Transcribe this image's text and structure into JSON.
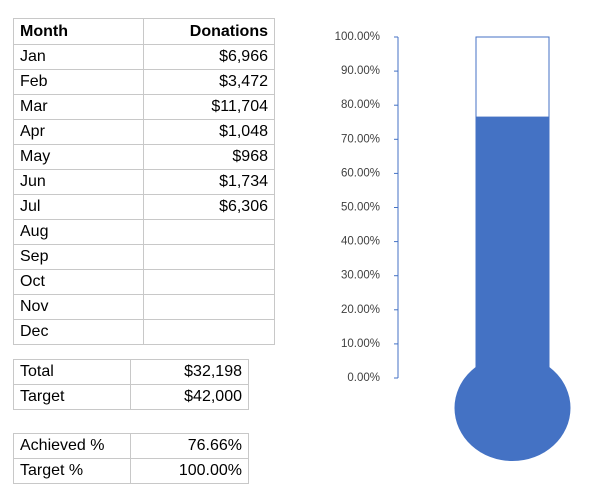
{
  "table": {
    "header": [
      "Month",
      "Donations"
    ],
    "rows": [
      [
        "Jan",
        "$6,966"
      ],
      [
        "Feb",
        "$3,472"
      ],
      [
        "Mar",
        "$11,704"
      ],
      [
        "Apr",
        "$1,048"
      ],
      [
        "May",
        "$968"
      ],
      [
        "Jun",
        "$1,734"
      ],
      [
        "Jul",
        "$6,306"
      ],
      [
        "Aug",
        null
      ],
      [
        "Sep",
        null
      ],
      [
        "Oct",
        null
      ],
      [
        "Nov",
        null
      ],
      [
        "Dec",
        null
      ]
    ],
    "totals": [
      [
        "Total",
        "$32,198"
      ],
      [
        "Target",
        "$42,000"
      ]
    ],
    "summary": [
      [
        "Achieved %",
        "76.66%"
      ],
      [
        "Target %",
        "100.00%"
      ]
    ]
  },
  "chart_data": {
    "type": "thermometer",
    "values": [
      76.66
    ],
    "color": "#4472c4",
    "ylim": [
      0,
      100
    ],
    "yticks": [
      {
        "value": 0,
        "label": "0.00%"
      },
      {
        "value": 10,
        "label": "10.00%"
      },
      {
        "value": 20,
        "label": "20.00%"
      },
      {
        "value": 30,
        "label": "30.00%"
      },
      {
        "value": 40,
        "label": "40.00%"
      },
      {
        "value": 50,
        "label": "50.00%"
      },
      {
        "value": 60,
        "label": "60.00%"
      },
      {
        "value": 70,
        "label": "70.00%"
      },
      {
        "value": 80,
        "label": "80.00%"
      },
      {
        "value": 90,
        "label": "90.00%"
      },
      {
        "value": 100,
        "label": "100.00%"
      }
    ]
  }
}
